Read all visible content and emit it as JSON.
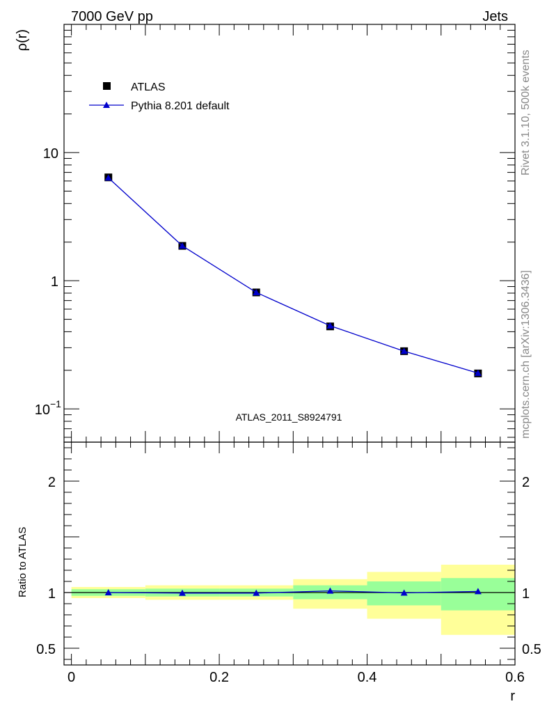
{
  "header": {
    "left": "7000 GeV pp",
    "right": "Jets"
  },
  "side_labels": {
    "rivet": "Rivet 3.1.10,  500k events",
    "mcplots": "mcplots.cern.ch [arXiv:1306.3436]"
  },
  "analysis_id": "ATLAS_2011_S8924791",
  "colors": {
    "data": "#000000",
    "mc": "#0000cc",
    "band_inner": "#99ff99",
    "band_outer": "#ffff99",
    "reference_line": "#000000"
  },
  "chart_data": [
    {
      "type": "line",
      "scale": "log",
      "ylabel": "ρ(r)",
      "xlim": [
        -0.01,
        0.6
      ],
      "ylim": [
        0.055,
        100
      ],
      "y_ticks": [
        {
          "v": 0.1,
          "mant": "10",
          "exp": "−1"
        },
        {
          "v": 1,
          "mant": "1",
          "exp": ""
        },
        {
          "v": 10,
          "mant": "10",
          "exp": ""
        }
      ],
      "legend_position": "top-left",
      "series": [
        {
          "name": "ATLAS",
          "marker": "square",
          "x": [
            0.05,
            0.15,
            0.25,
            0.35,
            0.45,
            0.55
          ],
          "y": [
            6.4,
            1.87,
            0.81,
            0.44,
            0.282,
            0.189
          ]
        },
        {
          "name": "Pythia 8.201 default",
          "marker": "triangle",
          "x": [
            0.05,
            0.15,
            0.25,
            0.35,
            0.45,
            0.55
          ],
          "y": [
            6.35,
            1.87,
            0.81,
            0.445,
            0.282,
            0.19
          ]
        }
      ]
    },
    {
      "type": "line",
      "scale": "linear",
      "xlabel": "r",
      "ylabel": "Ratio to ATLAS",
      "xlim": [
        -0.01,
        0.6
      ],
      "ylim": [
        0.35,
        2.35
      ],
      "x_ticks": [
        {
          "v": 0,
          "label": "0"
        },
        {
          "v": 0.2,
          "label": "0.2"
        },
        {
          "v": 0.4,
          "label": "0.4"
        },
        {
          "v": 0.6,
          "label": "0.6"
        }
      ],
      "y_ticks": [
        {
          "v": 0.5,
          "label": "0.5"
        },
        {
          "v": 1,
          "label": "1"
        },
        {
          "v": 2,
          "label": "2"
        }
      ],
      "bands": [
        {
          "x0": 0.0,
          "x1": 0.1,
          "inner": [
            0.97,
            1.03
          ],
          "outer": [
            0.95,
            1.05
          ]
        },
        {
          "x0": 0.1,
          "x1": 0.2,
          "inner": [
            0.965,
            1.035
          ],
          "outer": [
            0.935,
            1.065
          ]
        },
        {
          "x0": 0.2,
          "x1": 0.3,
          "inner": [
            0.965,
            1.035
          ],
          "outer": [
            0.935,
            1.065
          ]
        },
        {
          "x0": 0.3,
          "x1": 0.4,
          "inner": [
            0.94,
            1.065
          ],
          "outer": [
            0.855,
            1.12
          ]
        },
        {
          "x0": 0.4,
          "x1": 0.5,
          "inner": [
            0.885,
            1.1
          ],
          "outer": [
            0.765,
            1.185
          ]
        },
        {
          "x0": 0.5,
          "x1": 0.6,
          "inner": [
            0.84,
            1.13
          ],
          "outer": [
            0.62,
            1.25
          ]
        }
      ],
      "series": [
        {
          "name": "Pythia 8.201 default",
          "marker": "triangle",
          "x": [
            0.05,
            0.15,
            0.25,
            0.35,
            0.45,
            0.55
          ],
          "y": [
            1.0,
            0.995,
            0.995,
            1.015,
            0.997,
            1.01
          ]
        }
      ]
    }
  ]
}
